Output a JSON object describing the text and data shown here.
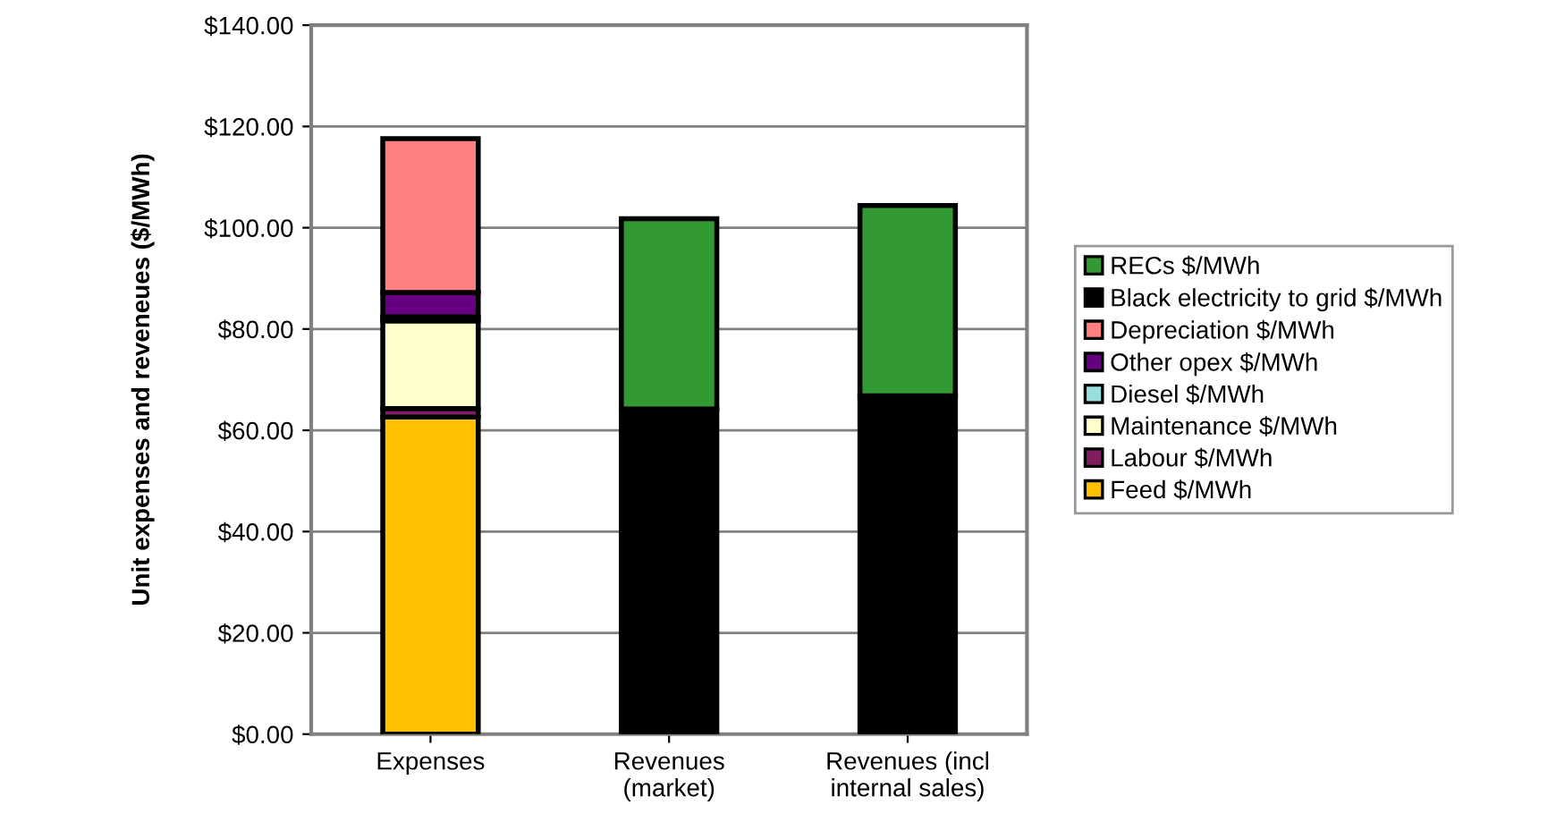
{
  "chart_data": {
    "type": "bar",
    "stacked": true,
    "ylabel": "Unit expenses and reveneues ($/MWh)",
    "categories": [
      "Expenses",
      "Revenues\n(market)",
      "Revenues (incl\ninternal sales)"
    ],
    "series": [
      {
        "name": "Feed $/MWh",
        "color": "#ffc000",
        "values": [
          62.6,
          null,
          null
        ]
      },
      {
        "name": "Labour $/MWh",
        "color": "#7f1f5f",
        "values": [
          1.7,
          null,
          null
        ]
      },
      {
        "name": "Maintenance $/MWh",
        "color": "#ffffcc",
        "values": [
          17.3,
          null,
          null
        ]
      },
      {
        "name": "Diesel $/MWh",
        "color": "#99dddd",
        "values": [
          0.8,
          null,
          null
        ]
      },
      {
        "name": "Other opex $/MWh",
        "color": "#660080",
        "values": [
          4.8,
          null,
          null
        ]
      },
      {
        "name": "Depreciation $/MWh",
        "color": "#ff8080",
        "values": [
          30.4,
          null,
          null
        ]
      },
      {
        "name": "Black electricity to grid $/MWh",
        "color": "#000000",
        "values": [
          null,
          64.2,
          66.8
        ]
      },
      {
        "name": "RECs $/MWh",
        "color": "#339933",
        "values": [
          null,
          37.6,
          37.6
        ]
      }
    ],
    "ylim": [
      0,
      140
    ],
    "yticks": [
      {
        "value": 0,
        "label": "$0.00"
      },
      {
        "value": 20,
        "label": "$20.00"
      },
      {
        "value": 40,
        "label": "$40.00"
      },
      {
        "value": 60,
        "label": "$60.00"
      },
      {
        "value": 80,
        "label": "$80.00"
      },
      {
        "value": 100,
        "label": "$100.00"
      },
      {
        "value": 120,
        "label": "$120.00"
      },
      {
        "value": 140,
        "label": "$140.00"
      }
    ],
    "grid": "y",
    "legend": "right"
  }
}
